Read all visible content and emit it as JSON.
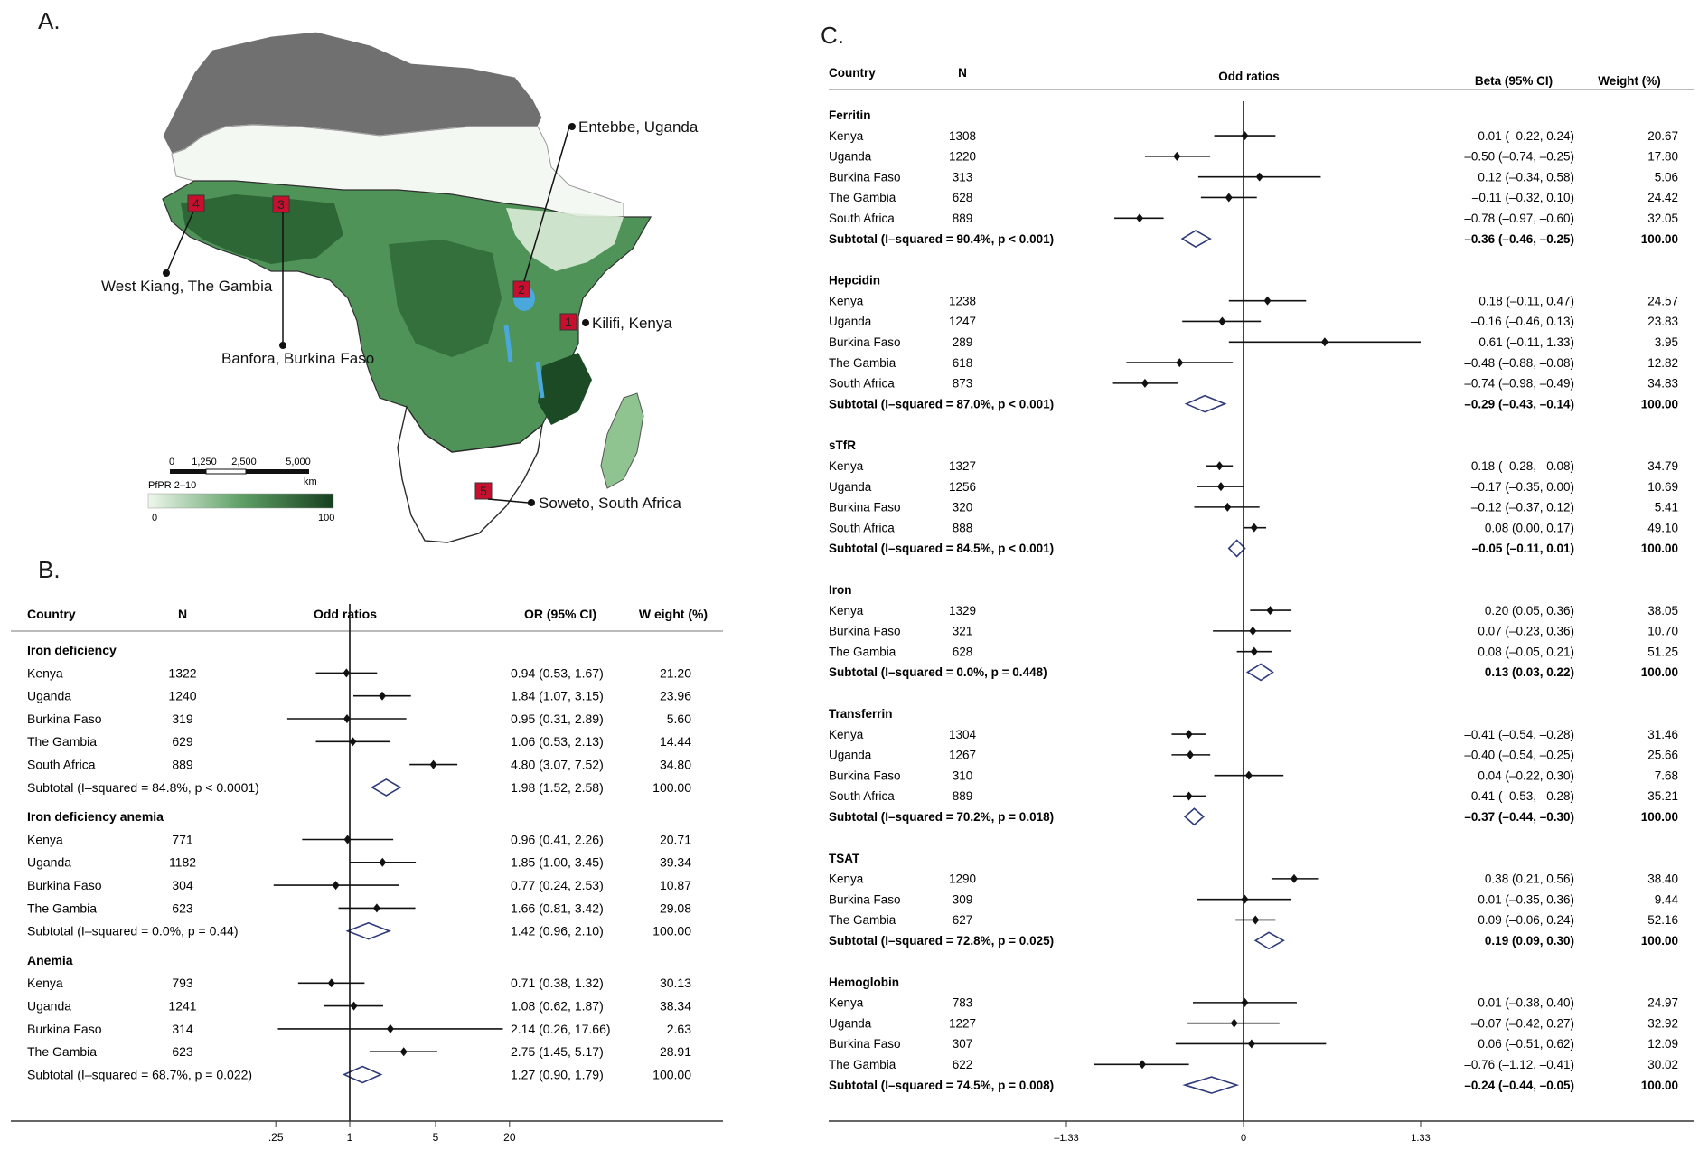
{
  "panel_labels": {
    "a": "A.",
    "b": "B.",
    "c": "C."
  },
  "map": {
    "sites": [
      {
        "num": "1",
        "label": "Kilifi, Kenya"
      },
      {
        "num": "2",
        "label": "Entebbe, Uganda"
      },
      {
        "num": "3",
        "label": "Banfora, Burkina Faso"
      },
      {
        "num": "4",
        "label": "West Kiang, The Gambia"
      },
      {
        "num": "5",
        "label": "Soweto, South Africa"
      }
    ],
    "scale_ticks": [
      "0",
      "1,250",
      "2,500",
      "5,000"
    ],
    "scale_unit": "km",
    "legend_title": "PfPR 2–10",
    "legend_min": "0",
    "legend_max": "100",
    "colors": {
      "gray": "#707070",
      "light": "#e4f2e1",
      "mid": "#5fa066",
      "dark": "#1c4a25",
      "water": "#4aa8dc",
      "marker": "#c8102e"
    }
  },
  "forest_b": {
    "headers": {
      "country": "Country",
      "n": "N",
      "effect": "Odd ratios",
      "ci": "OR (95% CI)",
      "weight": "W eight (%)"
    },
    "axis_ticks": [
      ".25",
      "1",
      "5",
      "20"
    ],
    "groups": [
      {
        "name": "Iron deficiency",
        "rows": [
          {
            "country": "Kenya",
            "n": "1322",
            "ci_text": "0.94 (0.53, 1.67)",
            "weight": "21.20",
            "est": 0.94,
            "lo": 0.53,
            "hi": 1.67
          },
          {
            "country": "Uganda",
            "n": "1240",
            "ci_text": "1.84 (1.07, 3.15)",
            "weight": "23.96",
            "est": 1.84,
            "lo": 1.07,
            "hi": 3.15
          },
          {
            "country": "Burkina Faso",
            "n": "319",
            "ci_text": "0.95 (0.31, 2.89)",
            "weight": "5.60",
            "est": 0.95,
            "lo": 0.31,
            "hi": 2.89
          },
          {
            "country": "The Gambia",
            "n": "629",
            "ci_text": "1.06 (0.53, 2.13)",
            "weight": "14.44",
            "est": 1.06,
            "lo": 0.53,
            "hi": 2.13
          },
          {
            "country": "South Africa",
            "n": "889",
            "ci_text": "4.80 (3.07, 7.52)",
            "weight": "34.80",
            "est": 4.8,
            "lo": 3.07,
            "hi": 7.52
          }
        ],
        "subtotal": {
          "label": "Subtotal  (I–squared = 84.8%, p < 0.0001)",
          "ci_text": "1.98 (1.52, 2.58)",
          "weight": "100.00",
          "est": 1.98,
          "lo": 1.52,
          "hi": 2.58
        }
      },
      {
        "name": "Iron deficiency anemia",
        "rows": [
          {
            "country": "Kenya",
            "n": "771",
            "ci_text": "0.96 (0.41, 2.26)",
            "weight": "20.71",
            "est": 0.96,
            "lo": 0.41,
            "hi": 2.26
          },
          {
            "country": "Uganda",
            "n": "1182",
            "ci_text": "1.85 (1.00, 3.45)",
            "weight": "39.34",
            "est": 1.85,
            "lo": 1.0,
            "hi": 3.45
          },
          {
            "country": "Burkina Faso",
            "n": "304",
            "ci_text": "0.77 (0.24, 2.53)",
            "weight": "10.87",
            "est": 0.77,
            "lo": 0.24,
            "hi": 2.53
          },
          {
            "country": "The Gambia",
            "n": "623",
            "ci_text": "1.66 (0.81, 3.42)",
            "weight": "29.08",
            "est": 1.66,
            "lo": 0.81,
            "hi": 3.42
          }
        ],
        "subtotal": {
          "label": "Subtotal  (I–squared = 0.0%, p = 0.44)",
          "ci_text": "1.42 (0.96, 2.10)",
          "weight": "100.00",
          "est": 1.42,
          "lo": 0.96,
          "hi": 2.1
        }
      },
      {
        "name": "Anemia",
        "rows": [
          {
            "country": "Kenya",
            "n": "793",
            "ci_text": "0.71 (0.38, 1.32)",
            "weight": "30.13",
            "est": 0.71,
            "lo": 0.38,
            "hi": 1.32
          },
          {
            "country": "Uganda",
            "n": "1241",
            "ci_text": "1.08 (0.62, 1.87)",
            "weight": "38.34",
            "est": 1.08,
            "lo": 0.62,
            "hi": 1.87
          },
          {
            "country": "Burkina Faso",
            "n": "314",
            "ci_text": "2.14 (0.26, 17.66)",
            "weight": "2.63",
            "est": 2.14,
            "lo": 0.26,
            "hi": 17.66
          },
          {
            "country": "The Gambia",
            "n": "623",
            "ci_text": "2.75 (1.45, 5.17)",
            "weight": "28.91",
            "est": 2.75,
            "lo": 1.45,
            "hi": 5.17
          }
        ],
        "subtotal": {
          "label": "Subtotal  (I–squared = 68.7%, p = 0.022)",
          "ci_text": "1.27 (0.90, 1.79)",
          "weight": "100.00",
          "est": 1.27,
          "lo": 0.9,
          "hi": 1.79
        }
      }
    ]
  },
  "forest_c": {
    "headers": {
      "country": "Country",
      "n": "N",
      "effect": "Odd ratios",
      "ci": "Beta (95% CI)",
      "weight": "Weight (%)"
    },
    "axis_ticks": [
      "–1.33",
      "0",
      "1.33"
    ],
    "groups": [
      {
        "name": "Ferritin",
        "rows": [
          {
            "country": "Kenya",
            "n": "1308",
            "ci_text": "0.01 (–0.22, 0.24)",
            "weight": "20.67",
            "est": 0.01,
            "lo": -0.22,
            "hi": 0.24
          },
          {
            "country": "Uganda",
            "n": "1220",
            "ci_text": "–0.50 (–0.74, –0.25)",
            "weight": "17.80",
            "est": -0.5,
            "lo": -0.74,
            "hi": -0.25
          },
          {
            "country": "Burkina Faso",
            "n": "313",
            "ci_text": "0.12 (–0.34, 0.58)",
            "weight": "5.06",
            "est": 0.12,
            "lo": -0.34,
            "hi": 0.58
          },
          {
            "country": "The Gambia",
            "n": "628",
            "ci_text": "–0.11 (–0.32, 0.10)",
            "weight": "24.42",
            "est": -0.11,
            "lo": -0.32,
            "hi": 0.1
          },
          {
            "country": "South Africa",
            "n": "889",
            "ci_text": "–0.78 (–0.97, –0.60)",
            "weight": "32.05",
            "est": -0.78,
            "lo": -0.97,
            "hi": -0.6
          }
        ],
        "subtotal": {
          "label": "Subtotal  (I–squared = 90.4%, p < 0.001)",
          "ci_text": "–0.36 (–0.46, –0.25)",
          "weight": "100.00",
          "est": -0.36,
          "lo": -0.46,
          "hi": -0.25
        }
      },
      {
        "name": "Hepcidin",
        "rows": [
          {
            "country": "Kenya",
            "n": "1238",
            "ci_text": "0.18 (–0.11, 0.47)",
            "weight": "24.57",
            "est": 0.18,
            "lo": -0.11,
            "hi": 0.47
          },
          {
            "country": "Uganda",
            "n": "1247",
            "ci_text": "–0.16 (–0.46, 0.13)",
            "weight": "23.83",
            "est": -0.16,
            "lo": -0.46,
            "hi": 0.13
          },
          {
            "country": "Burkina Faso",
            "n": "289",
            "ci_text": "0.61 (–0.11, 1.33)",
            "weight": "3.95",
            "est": 0.61,
            "lo": -0.11,
            "hi": 1.33
          },
          {
            "country": "The Gambia",
            "n": "618",
            "ci_text": "–0.48 (–0.88, –0.08)",
            "weight": "12.82",
            "est": -0.48,
            "lo": -0.88,
            "hi": -0.08
          },
          {
            "country": "South Africa",
            "n": "873",
            "ci_text": "–0.74 (–0.98, –0.49)",
            "weight": "34.83",
            "est": -0.74,
            "lo": -0.98,
            "hi": -0.49
          }
        ],
        "subtotal": {
          "label": "Subtotal  (I–squared = 87.0%, p < 0.001)",
          "ci_text": "–0.29 (–0.43, –0.14)",
          "weight": "100.00",
          "est": -0.29,
          "lo": -0.43,
          "hi": -0.14
        }
      },
      {
        "name": "sTfR",
        "rows": [
          {
            "country": "Kenya",
            "n": "1327",
            "ci_text": "–0.18 (–0.28, –0.08)",
            "weight": "34.79",
            "est": -0.18,
            "lo": -0.28,
            "hi": -0.08
          },
          {
            "country": "Uganda",
            "n": "1256",
            "ci_text": "–0.17 (–0.35, 0.00)",
            "weight": "10.69",
            "est": -0.17,
            "lo": -0.35,
            "hi": 0.0
          },
          {
            "country": "Burkina Faso",
            "n": "320",
            "ci_text": "–0.12 (–0.37, 0.12)",
            "weight": "5.41",
            "est": -0.12,
            "lo": -0.37,
            "hi": 0.12
          },
          {
            "country": "South Africa",
            "n": "888",
            "ci_text": "0.08 (0.00, 0.17)",
            "weight": "49.10",
            "est": 0.08,
            "lo": 0.0,
            "hi": 0.17
          }
        ],
        "subtotal": {
          "label": "Subtotal  (I–squared = 84.5%, p < 0.001)",
          "ci_text": "–0.05 (–0.11, 0.01)",
          "weight": "100.00",
          "est": -0.05,
          "lo": -0.11,
          "hi": 0.01
        }
      },
      {
        "name": "Iron",
        "rows": [
          {
            "country": "Kenya",
            "n": "1329",
            "ci_text": "0.20 (0.05, 0.36)",
            "weight": "38.05",
            "est": 0.2,
            "lo": 0.05,
            "hi": 0.36
          },
          {
            "country": "Burkina Faso",
            "n": "321",
            "ci_text": "0.07 (–0.23, 0.36)",
            "weight": "10.70",
            "est": 0.07,
            "lo": -0.23,
            "hi": 0.36
          },
          {
            "country": "The Gambia",
            "n": "628",
            "ci_text": "0.08 (–0.05, 0.21)",
            "weight": "51.25",
            "est": 0.08,
            "lo": -0.05,
            "hi": 0.21
          }
        ],
        "subtotal": {
          "label": "Subtotal  (I–squared = 0.0%, p = 0.448)",
          "ci_text": "0.13 (0.03, 0.22)",
          "weight": "100.00",
          "est": 0.13,
          "lo": 0.03,
          "hi": 0.22
        }
      },
      {
        "name": "Transferrin",
        "rows": [
          {
            "country": "Kenya",
            "n": "1304",
            "ci_text": "–0.41 (–0.54, –0.28)",
            "weight": "31.46",
            "est": -0.41,
            "lo": -0.54,
            "hi": -0.28
          },
          {
            "country": "Uganda",
            "n": "1267",
            "ci_text": "–0.40 (–0.54, –0.25)",
            "weight": "25.66",
            "est": -0.4,
            "lo": -0.54,
            "hi": -0.25
          },
          {
            "country": "Burkina Faso",
            "n": "310",
            "ci_text": "0.04 (–0.22, 0.30)",
            "weight": "7.68",
            "est": 0.04,
            "lo": -0.22,
            "hi": 0.3
          },
          {
            "country": "South Africa",
            "n": "889",
            "ci_text": "–0.41 (–0.53, –0.28)",
            "weight": "35.21",
            "est": -0.41,
            "lo": -0.53,
            "hi": -0.28
          }
        ],
        "subtotal": {
          "label": "Subtotal  (I–squared = 70.2%, p = 0.018)",
          "ci_text": "–0.37 (–0.44, –0.30)",
          "weight": "100.00",
          "est": -0.37,
          "lo": -0.44,
          "hi": -0.3
        }
      },
      {
        "name": "TSAT",
        "rows": [
          {
            "country": "Kenya",
            "n": "1290",
            "ci_text": "0.38 (0.21, 0.56)",
            "weight": "38.40",
            "est": 0.38,
            "lo": 0.21,
            "hi": 0.56
          },
          {
            "country": "Burkina Faso",
            "n": "309",
            "ci_text": "0.01 (–0.35, 0.36)",
            "weight": "9.44",
            "est": 0.01,
            "lo": -0.35,
            "hi": 0.36
          },
          {
            "country": "The Gambia",
            "n": "627",
            "ci_text": "0.09 (–0.06, 0.24)",
            "weight": "52.16",
            "est": 0.09,
            "lo": -0.06,
            "hi": 0.24
          }
        ],
        "subtotal": {
          "label": "Subtotal  (I–squared = 72.8%, p = 0.025)",
          "ci_text": "0.19 (0.09, 0.30)",
          "weight": "100.00",
          "est": 0.19,
          "lo": 0.09,
          "hi": 0.3
        }
      },
      {
        "name": "Hemoglobin",
        "rows": [
          {
            "country": "Kenya",
            "n": "783",
            "ci_text": "0.01 (–0.38, 0.40)",
            "weight": "24.97",
            "est": 0.01,
            "lo": -0.38,
            "hi": 0.4
          },
          {
            "country": "Uganda",
            "n": "1227",
            "ci_text": "–0.07 (–0.42, 0.27)",
            "weight": "32.92",
            "est": -0.07,
            "lo": -0.42,
            "hi": 0.27
          },
          {
            "country": "Burkina Faso",
            "n": "307",
            "ci_text": "0.06 (–0.51, 0.62)",
            "weight": "12.09",
            "est": 0.06,
            "lo": -0.51,
            "hi": 0.62
          },
          {
            "country": "The Gambia",
            "n": "622",
            "ci_text": "–0.76 (–1.12, –0.41)",
            "weight": "30.02",
            "est": -0.76,
            "lo": -1.12,
            "hi": -0.41
          }
        ],
        "subtotal": {
          "label": "Subtotal  (I–squared = 74.5%, p = 0.008)",
          "ci_text": "–0.24 (–0.44, –0.05)",
          "weight": "100.00",
          "est": -0.24,
          "lo": -0.44,
          "hi": -0.05
        }
      }
    ]
  }
}
